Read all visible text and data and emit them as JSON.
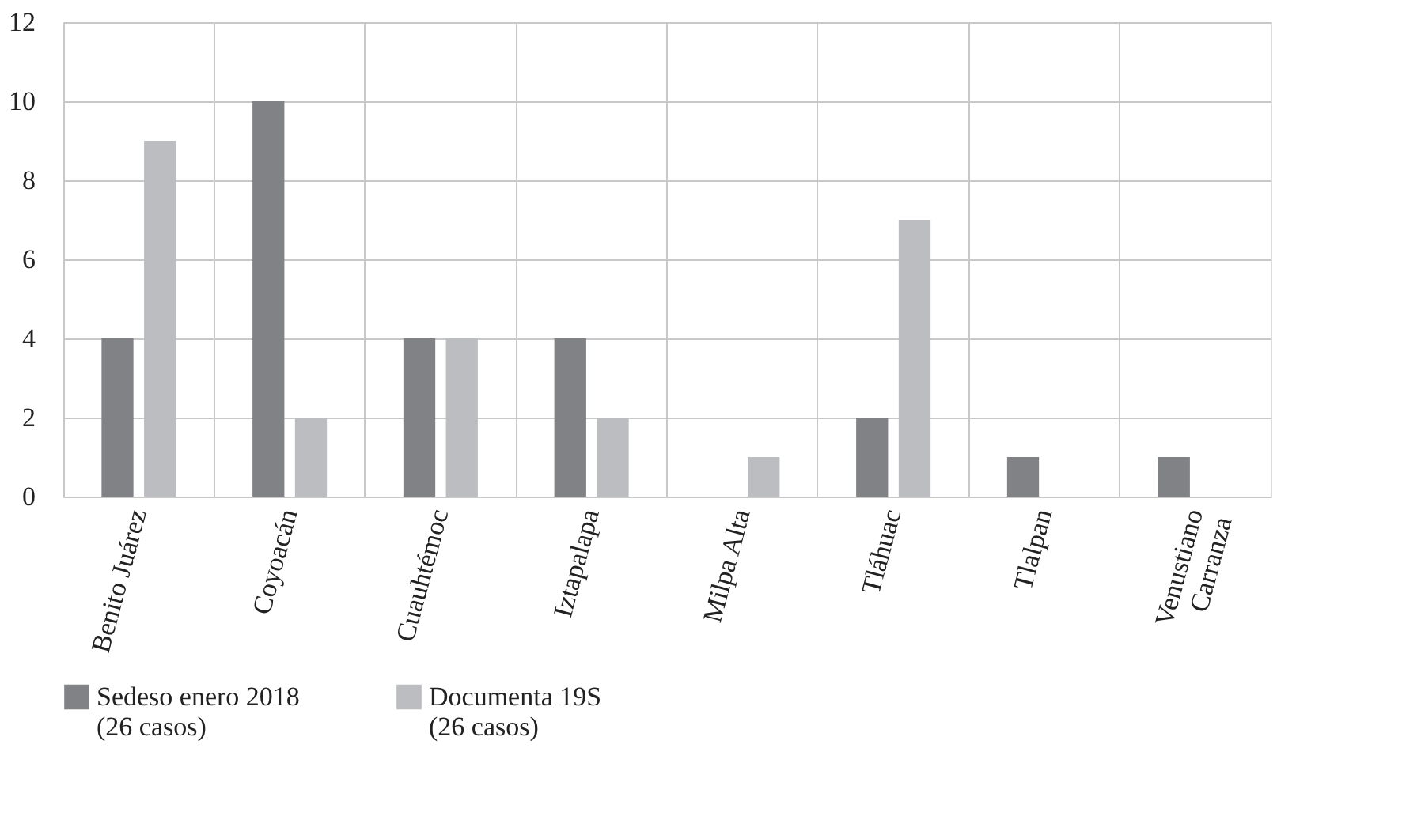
{
  "chart_data": {
    "type": "bar",
    "categories": [
      "Benito Juárez",
      "Coyoacán",
      "Cuauhtémoc",
      "Iztapalapa",
      "Milpa Alta",
      "Tláhuac",
      "Tlalpan",
      "Venustiano Carranza"
    ],
    "series": [
      {
        "name": "Sedeso enero 2018 (26 casos)",
        "color": "#818285",
        "values": [
          4,
          10,
          4,
          4,
          0,
          2,
          1,
          1
        ]
      },
      {
        "name": "Documenta 19S (26 casos)",
        "color": "#bcbdc0",
        "values": [
          9,
          2,
          4,
          2,
          1,
          7,
          0,
          0
        ]
      }
    ],
    "ylim": [
      0,
      12
    ],
    "yticks": [
      0,
      2,
      4,
      6,
      8,
      10,
      12
    ],
    "grid": true,
    "legend": "bottom"
  }
}
